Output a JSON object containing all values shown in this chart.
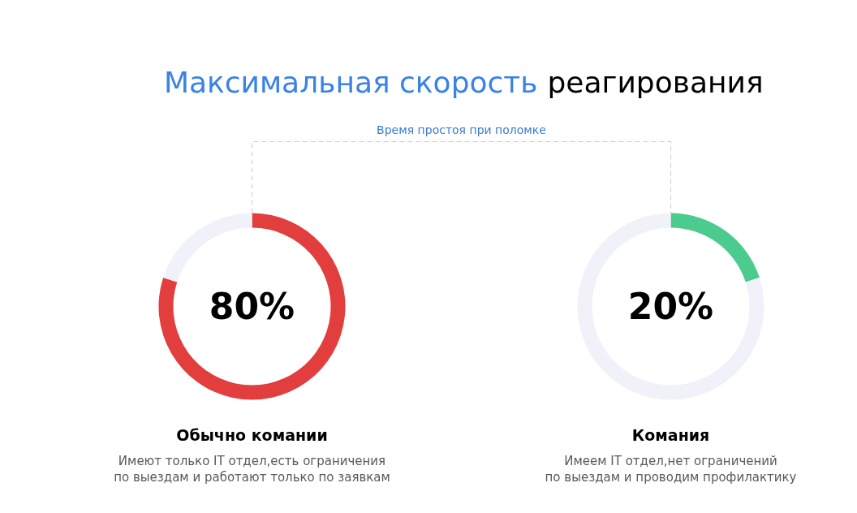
{
  "chart_data": [
    {
      "type": "other",
      "title": "Максимальная скорость реагирования",
      "subtitle": "Время простоя при поломке"
    },
    {
      "type": "donut",
      "title": "Обычно комании",
      "categories": [
        null,
        null
      ],
      "values": [
        80,
        20
      ],
      "colors": [
        "#e23e3e",
        "#f1f1f9"
      ],
      "annotations": [
        "80%",
        "Имеют только IT отдел,есть ограничения",
        "по выездам и работают только по заявкам"
      ]
    },
    {
      "type": "donut",
      "title": "Комания",
      "categories": [
        null,
        null
      ],
      "values": [
        20,
        80
      ],
      "colors": [
        "#4ccb8e",
        "#f1f1f9"
      ],
      "annotations": [
        "20%",
        "Имеем IT отдел,нет ограничений",
        "по выездам и проводим профилактику"
      ]
    }
  ]
}
